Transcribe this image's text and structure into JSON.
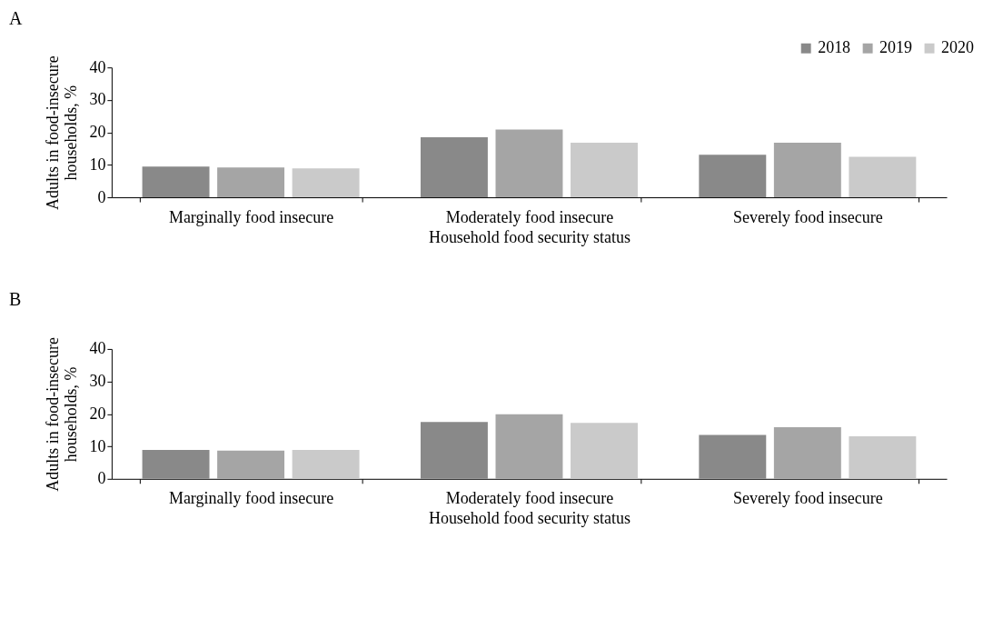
{
  "chart_data": [
    {
      "type": "bar",
      "title": "A",
      "xlabel": "Household food security status",
      "ylabel": "Adults in food-insecure households, %",
      "categories": [
        "Marginally food insecure",
        "Moderately food insecure",
        "Severely food insecure"
      ],
      "series": [
        {
          "name": "2018",
          "color": "#898989",
          "values": [
            9.5,
            18.5,
            13.1
          ]
        },
        {
          "name": "2019",
          "color": "#a5a5a5",
          "values": [
            9.2,
            20.9,
            16.8
          ]
        },
        {
          "name": "2020",
          "color": "#cacaca",
          "values": [
            8.9,
            16.8,
            12.5
          ]
        }
      ],
      "ylim": [
        0,
        40
      ],
      "yticks": [
        0,
        10,
        20,
        30,
        40
      ],
      "grid": false,
      "legend": "top right"
    },
    {
      "type": "bar",
      "title": "B",
      "xlabel": "Household food security status",
      "ylabel": "Adults in food-insecure households, %",
      "categories": [
        "Marginally food insecure",
        "Moderately food insecure",
        "Severely food insecure"
      ],
      "series": [
        {
          "name": "2018",
          "color": "#898989",
          "values": [
            8.9,
            17.5,
            13.5
          ]
        },
        {
          "name": "2019",
          "color": "#a5a5a5",
          "values": [
            8.7,
            19.9,
            15.9
          ]
        },
        {
          "name": "2020",
          "color": "#cacaca",
          "values": [
            8.9,
            17.2,
            13.1
          ]
        }
      ],
      "ylim": [
        0,
        40
      ],
      "yticks": [
        0,
        10,
        20,
        30,
        40
      ],
      "grid": false,
      "legend": "top right"
    }
  ]
}
